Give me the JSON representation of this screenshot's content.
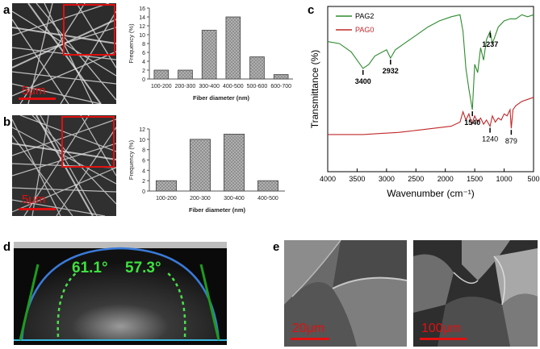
{
  "panels": {
    "a": "a",
    "b": "b",
    "c": "c",
    "d": "d",
    "e": "e"
  },
  "sem_a": {
    "scale": "5μm"
  },
  "sem_b": {
    "scale": "5μm"
  },
  "sem_e1": {
    "scale": "20μm"
  },
  "sem_e2": {
    "scale": "100μm"
  },
  "contact_angle": {
    "left": "61.1°",
    "right": "57.3°"
  },
  "colors": {
    "green": "#2e8b2e",
    "red": "#c0282a",
    "bar_fill": "#9a9a9a",
    "scale": "#e01010"
  },
  "chart_data": [
    {
      "id": "hist-a",
      "type": "bar",
      "categories": [
        "100-200",
        "200-300",
        "300-400",
        "400-500",
        "500-600",
        "600-700"
      ],
      "values": [
        2,
        2,
        11,
        14,
        5,
        1
      ],
      "xlabel": "Fiber diameter (nm)",
      "ylabel": "Frequency (%)",
      "ylim": [
        0,
        16
      ],
      "yticks": [
        0,
        2,
        4,
        6,
        8,
        10,
        12,
        14,
        16
      ]
    },
    {
      "id": "hist-b",
      "type": "bar",
      "categories": [
        "100-200",
        "200-300",
        "300-400",
        "400-500"
      ],
      "values": [
        2,
        10,
        11,
        2
      ],
      "xlabel": "Fiber diameter (nm)",
      "ylabel": "Frequency (%)",
      "ylim": [
        0,
        12
      ],
      "yticks": [
        0,
        2,
        4,
        6,
        8,
        10,
        12
      ]
    },
    {
      "id": "ftir-c",
      "type": "line",
      "xlabel": "Wavenumber (cm⁻¹)",
      "ylabel": "Transmittance (%)",
      "xlim": [
        4000,
        500
      ],
      "xticks": [
        4000,
        3500,
        3000,
        2500,
        2000,
        1500,
        1000,
        500
      ],
      "series": [
        {
          "name": "PAG2",
          "x": [
            4000,
            3800,
            3600,
            3500,
            3400,
            3300,
            3200,
            3000,
            2932,
            2850,
            2700,
            2500,
            2300,
            2100,
            1900,
            1750,
            1700,
            1650,
            1600,
            1540,
            1500,
            1450,
            1400,
            1350,
            1300,
            1237,
            1200,
            1100,
            1000,
            900,
            800,
            700,
            600,
            500
          ],
          "y": [
            83,
            82,
            78,
            74,
            70,
            72,
            76,
            79,
            75,
            79,
            82,
            86,
            90,
            93,
            95,
            96,
            88,
            70,
            60,
            50,
            72,
            68,
            80,
            74,
            84,
            88,
            82,
            90,
            93,
            94,
            94,
            96,
            95,
            96
          ]
        },
        {
          "name": "PAG0",
          "x": [
            4000,
            3700,
            3400,
            3100,
            2800,
            2500,
            2200,
            1900,
            1750,
            1700,
            1650,
            1600,
            1550,
            1500,
            1450,
            1400,
            1350,
            1300,
            1240,
            1200,
            1150,
            1100,
            1050,
            1000,
            950,
            900,
            879,
            850,
            800,
            700,
            600,
            500
          ],
          "y": [
            38,
            38,
            38,
            38.5,
            39,
            40,
            41,
            42,
            44,
            49,
            45,
            48,
            43,
            47,
            44,
            46,
            43,
            45,
            42,
            47,
            44,
            46,
            45,
            48,
            47,
            50,
            41,
            50,
            52,
            54,
            55,
            56
          ]
        }
      ],
      "annotations": [
        {
          "label": "3400",
          "x": 3400,
          "series": "PAG2"
        },
        {
          "label": "2932",
          "x": 2932,
          "series": "PAG2"
        },
        {
          "label": "1540",
          "x": 1540,
          "series": "PAG2"
        },
        {
          "label": "1237",
          "x": 1237,
          "series": "PAG2"
        },
        {
          "label": "1240",
          "x": 1240,
          "series": "PAG0"
        },
        {
          "label": "879",
          "x": 879,
          "series": "PAG0"
        }
      ]
    }
  ]
}
